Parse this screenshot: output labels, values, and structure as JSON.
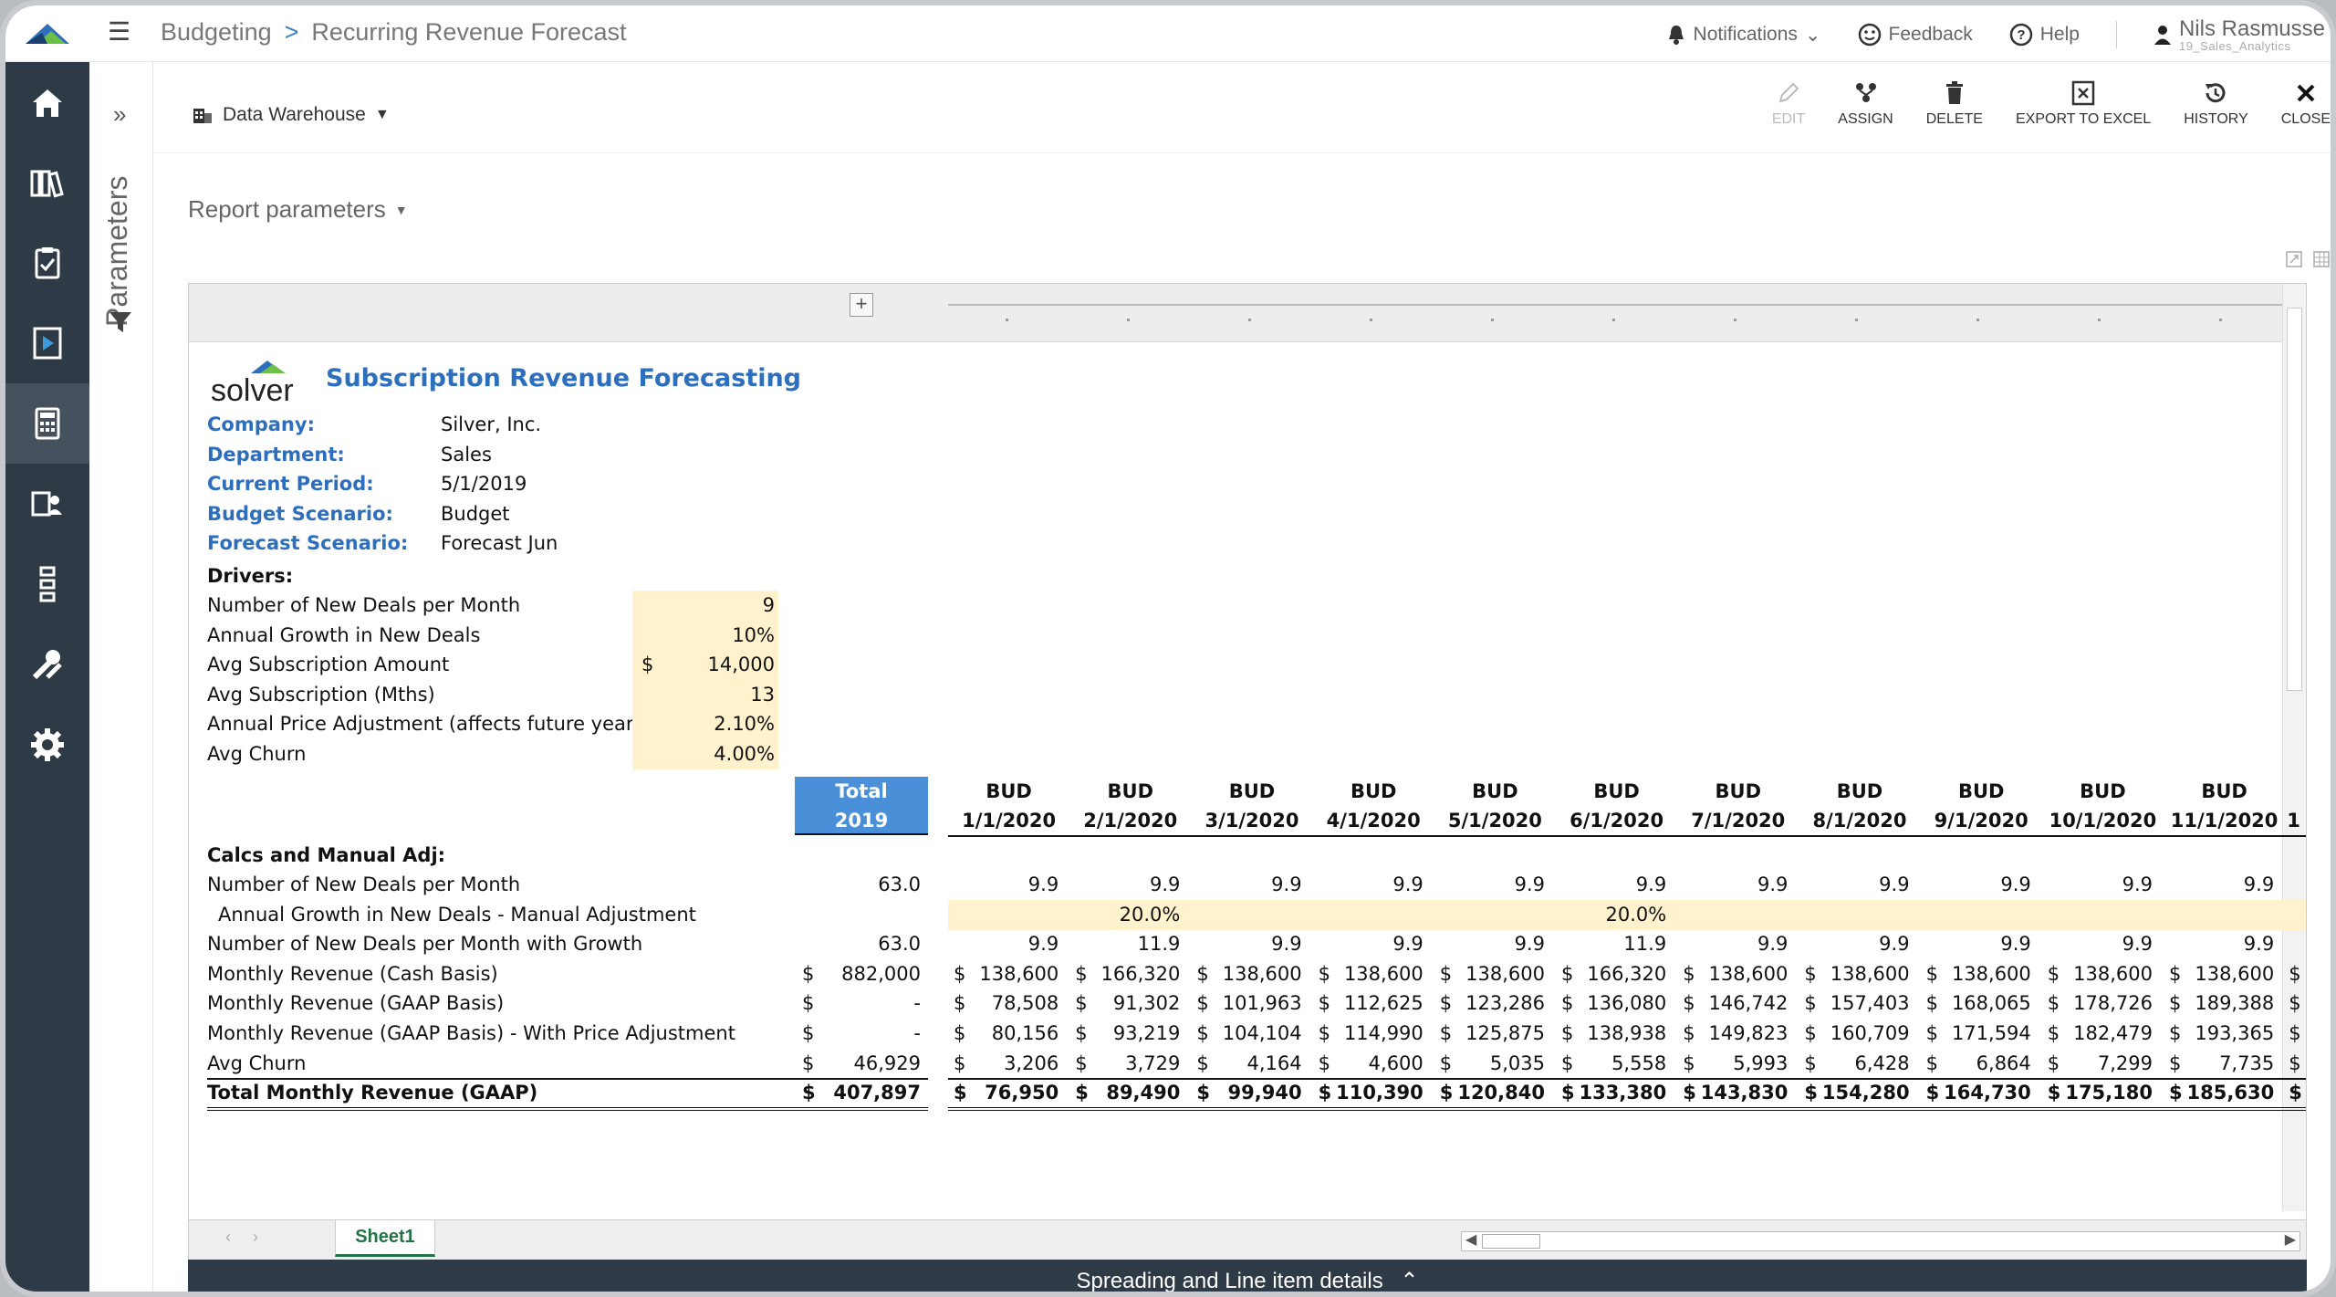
{
  "header": {
    "breadcrumb": [
      "Budgeting",
      "Recurring Revenue Forecast"
    ],
    "breadcrumb_sep": ">",
    "notifications": "Notifications",
    "feedback": "Feedback",
    "help": "Help",
    "user_name": "Nils Rasmusse",
    "user_sub": "19_Sales_Analytics"
  },
  "sidebar": {
    "items": [
      {
        "icon": "home-icon"
      },
      {
        "icon": "library-icon"
      },
      {
        "icon": "clipboard-icon"
      },
      {
        "icon": "presentation-icon"
      },
      {
        "icon": "calculator-icon",
        "active": true
      },
      {
        "icon": "document-user-icon"
      },
      {
        "icon": "hierarchy-icon"
      },
      {
        "icon": "tools-icon"
      },
      {
        "icon": "gear-icon"
      }
    ]
  },
  "params_rail": {
    "label": "Parameters"
  },
  "toolbar": {
    "data_source": "Data Warehouse",
    "actions": {
      "edit": "EDIT",
      "assign": "ASSIGN",
      "delete": "DELETE",
      "export": "EXPORT TO EXCEL",
      "history": "HISTORY",
      "close": "CLOSE"
    }
  },
  "report_params": "Report parameters",
  "report": {
    "logo_text": "solver",
    "title": "Subscription Revenue Forecasting",
    "info": [
      {
        "label": "Company:",
        "value": "Silver, Inc."
      },
      {
        "label": "Department:",
        "value": "Sales"
      },
      {
        "label": "Current Period:",
        "value": "5/1/2019"
      },
      {
        "label": "Budget Scenario:",
        "value": "Budget"
      },
      {
        "label": "Forecast Scenario:",
        "value": "Forecast Jun"
      }
    ],
    "drivers_header": "Drivers:",
    "drivers": [
      {
        "label": "Number of New Deals per Month",
        "cur": "",
        "value": "9"
      },
      {
        "label": "Annual Growth in New Deals",
        "cur": "",
        "value": "10%"
      },
      {
        "label": "Avg Subscription Amount",
        "cur": "$",
        "value": "14,000"
      },
      {
        "label": "Avg Subscription (Mths)",
        "cur": "",
        "value": "13"
      },
      {
        "label": "Annual Price Adjustment (affects future years)",
        "cur": "",
        "value": "2.10%"
      },
      {
        "label": "Avg Churn",
        "cur": "",
        "value": "4.00%"
      }
    ],
    "total_header": [
      "Total",
      "2019"
    ],
    "col_headers": [
      [
        "BUD",
        "1/1/2020"
      ],
      [
        "BUD",
        "2/1/2020"
      ],
      [
        "BUD",
        "3/1/2020"
      ],
      [
        "BUD",
        "4/1/2020"
      ],
      [
        "BUD",
        "5/1/2020"
      ],
      [
        "BUD",
        "6/1/2020"
      ],
      [
        "BUD",
        "7/1/2020"
      ],
      [
        "BUD",
        "8/1/2020"
      ],
      [
        "BUD",
        "9/1/2020"
      ],
      [
        "BUD",
        "10/1/2020"
      ],
      [
        "BUD",
        "11/1/2020"
      ]
    ],
    "trailing_header": "1",
    "calcs_header": "Calcs and Manual Adj:",
    "rows": [
      {
        "label": "Number of New Deals per Month",
        "cur": false,
        "total": "63.0",
        "values": [
          "9.9",
          "9.9",
          "9.9",
          "9.9",
          "9.9",
          "9.9",
          "9.9",
          "9.9",
          "9.9",
          "9.9",
          "9.9"
        ]
      },
      {
        "label": "Annual Growth in New Deals - Manual Adjustment",
        "indent": true,
        "cur": false,
        "total": "",
        "yellow": true,
        "values": [
          "",
          "20.0%",
          "",
          "",
          "",
          "20.0%",
          "",
          "",
          "",
          "",
          ""
        ]
      },
      {
        "label": "Number of New Deals per Month with Growth",
        "cur": false,
        "total": "63.0",
        "values": [
          "9.9",
          "11.9",
          "9.9",
          "9.9",
          "9.9",
          "11.9",
          "9.9",
          "9.9",
          "9.9",
          "9.9",
          "9.9"
        ]
      },
      {
        "label": "Monthly Revenue (Cash Basis)",
        "cur": true,
        "total": "882,000",
        "values": [
          "138,600",
          "166,320",
          "138,600",
          "138,600",
          "138,600",
          "166,320",
          "138,600",
          "138,600",
          "138,600",
          "138,600",
          "138,600"
        ]
      },
      {
        "label": "Monthly Revenue (GAAP Basis)",
        "cur": true,
        "total": "-",
        "values": [
          "78,508",
          "91,302",
          "101,963",
          "112,625",
          "123,286",
          "136,080",
          "146,742",
          "157,403",
          "168,065",
          "178,726",
          "189,388"
        ]
      },
      {
        "label": "Monthly Revenue (GAAP Basis) - With Price Adjustment",
        "cur": true,
        "total": "-",
        "values": [
          "80,156",
          "93,219",
          "104,104",
          "114,990",
          "125,875",
          "138,938",
          "149,823",
          "160,709",
          "171,594",
          "182,479",
          "193,365"
        ]
      },
      {
        "label": "Avg Churn",
        "cur": true,
        "total": "46,929",
        "values": [
          "3,206",
          "3,729",
          "4,164",
          "4,600",
          "5,035",
          "5,558",
          "5,993",
          "6,428",
          "6,864",
          "7,299",
          "7,735"
        ]
      },
      {
        "label": "Total Monthly Revenue (GAAP)",
        "cur": true,
        "total": "407,897",
        "bold": true,
        "values": [
          "76,950",
          "89,490",
          "99,940",
          "110,390",
          "120,840",
          "133,380",
          "143,830",
          "154,280",
          "164,730",
          "175,180",
          "185,630"
        ]
      }
    ],
    "currency_symbol": "$"
  },
  "sheet_tab": "Sheet1",
  "footer": "Spreading and Line item details"
}
